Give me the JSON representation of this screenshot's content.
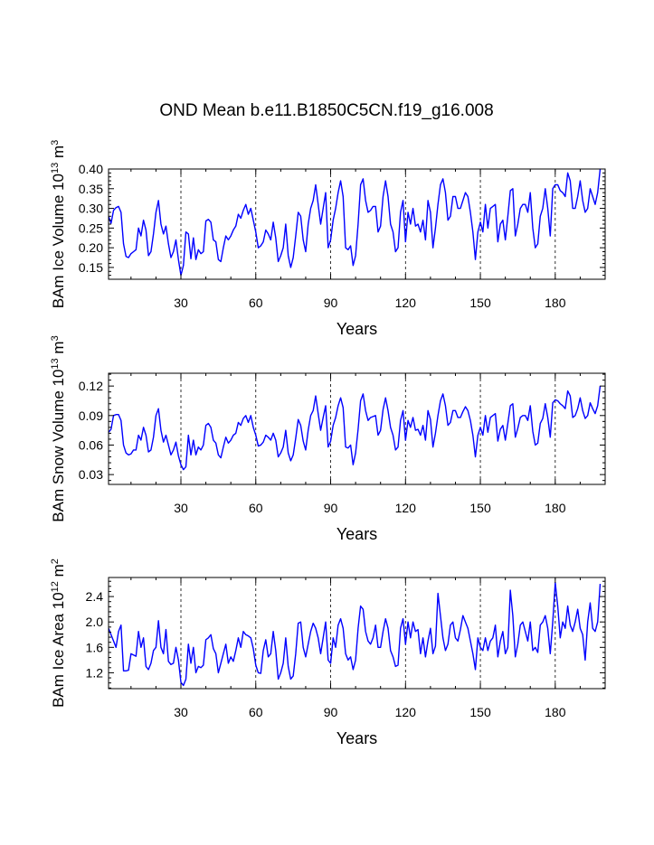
{
  "page_title": "OND Mean b.e11.B1850C5CN.f19_g16.008",
  "colors": {
    "line": "#0000ff",
    "frame": "#000000",
    "ref_line": "#000000"
  },
  "chart_data": [
    {
      "type": "line",
      "name": "ice-volume",
      "ylabel": {
        "pre": "BAm Ice Volume 10",
        "exp": "13",
        "mid": " m",
        "exp2": "3"
      },
      "xlabel": "Years",
      "xlim": [
        1,
        200
      ],
      "ylim": [
        0.12,
        0.4
      ],
      "xticks": [
        30,
        60,
        90,
        120,
        150,
        180
      ],
      "xtick_labels": [
        "30",
        "60",
        "90",
        "120",
        "150",
        "180"
      ],
      "yticks": [
        0.15,
        0.2,
        0.25,
        0.3,
        0.35,
        0.4
      ],
      "ytick_labels": [
        "0.15",
        "0.20",
        "0.25",
        "0.30",
        "0.35",
        "0.40"
      ],
      "ref_lines_x": [
        30,
        60,
        90,
        120,
        150,
        180
      ],
      "y": [
        0.28,
        0.262,
        0.295,
        0.302,
        0.305,
        0.29,
        0.21,
        0.178,
        0.175,
        0.185,
        0.19,
        0.195,
        0.25,
        0.23,
        0.27,
        0.245,
        0.18,
        0.19,
        0.235,
        0.29,
        0.32,
        0.26,
        0.235,
        0.255,
        0.21,
        0.175,
        0.19,
        0.22,
        0.17,
        0.13,
        0.155,
        0.24,
        0.235,
        0.172,
        0.225,
        0.17,
        0.195,
        0.185,
        0.19,
        0.268,
        0.272,
        0.265,
        0.22,
        0.215,
        0.17,
        0.165,
        0.2,
        0.23,
        0.22,
        0.23,
        0.245,
        0.255,
        0.285,
        0.275,
        0.295,
        0.31,
        0.285,
        0.3,
        0.27,
        0.24,
        0.2,
        0.205,
        0.215,
        0.245,
        0.235,
        0.22,
        0.265,
        0.225,
        0.165,
        0.18,
        0.2,
        0.26,
        0.18,
        0.15,
        0.175,
        0.23,
        0.29,
        0.28,
        0.22,
        0.19,
        0.26,
        0.3,
        0.32,
        0.36,
        0.31,
        0.26,
        0.3,
        0.34,
        0.2,
        0.22,
        0.27,
        0.3,
        0.34,
        0.37,
        0.33,
        0.2,
        0.195,
        0.205,
        0.155,
        0.18,
        0.26,
        0.36,
        0.375,
        0.32,
        0.29,
        0.295,
        0.305,
        0.305,
        0.24,
        0.255,
        0.33,
        0.37,
        0.33,
        0.26,
        0.24,
        0.19,
        0.2,
        0.29,
        0.32,
        0.215,
        0.29,
        0.26,
        0.3,
        0.255,
        0.26,
        0.24,
        0.27,
        0.22,
        0.32,
        0.29,
        0.2,
        0.25,
        0.31,
        0.36,
        0.375,
        0.34,
        0.27,
        0.28,
        0.33,
        0.33,
        0.3,
        0.3,
        0.32,
        0.34,
        0.33,
        0.29,
        0.24,
        0.17,
        0.24,
        0.265,
        0.24,
        0.31,
        0.25,
        0.3,
        0.305,
        0.31,
        0.215,
        0.26,
        0.27,
        0.22,
        0.28,
        0.345,
        0.35,
        0.23,
        0.26,
        0.3,
        0.31,
        0.31,
        0.29,
        0.34,
        0.25,
        0.2,
        0.21,
        0.28,
        0.3,
        0.35,
        0.3,
        0.23,
        0.35,
        0.36,
        0.36,
        0.345,
        0.34,
        0.33,
        0.39,
        0.37,
        0.3,
        0.3,
        0.33,
        0.37,
        0.32,
        0.29,
        0.3,
        0.35,
        0.33,
        0.31,
        0.34,
        0.4
      ]
    },
    {
      "type": "line",
      "name": "snow-volume",
      "ylabel": {
        "pre": "BAm Snow Volume 10",
        "exp": "13",
        "mid": " m",
        "exp2": "3"
      },
      "xlabel": "Years",
      "xlim": [
        1,
        200
      ],
      "ylim": [
        0.02,
        0.133
      ],
      "xticks": [
        30,
        60,
        90,
        120,
        150,
        180
      ],
      "xtick_labels": [
        "30",
        "60",
        "90",
        "120",
        "150",
        "180"
      ],
      "yticks": [
        0.03,
        0.06,
        0.09,
        0.12
      ],
      "ytick_labels": [
        "0.03",
        "0.06",
        "0.09",
        "0.12"
      ],
      "ref_lines_x": [
        30,
        60,
        90,
        120,
        150,
        180
      ],
      "y": [
        0.073,
        0.076,
        0.09,
        0.091,
        0.091,
        0.085,
        0.06,
        0.052,
        0.05,
        0.051,
        0.055,
        0.055,
        0.07,
        0.065,
        0.078,
        0.07,
        0.053,
        0.055,
        0.068,
        0.09,
        0.097,
        0.075,
        0.063,
        0.07,
        0.06,
        0.05,
        0.055,
        0.063,
        0.049,
        0.04,
        0.035,
        0.038,
        0.07,
        0.05,
        0.065,
        0.05,
        0.058,
        0.055,
        0.06,
        0.08,
        0.082,
        0.078,
        0.065,
        0.062,
        0.05,
        0.047,
        0.058,
        0.068,
        0.062,
        0.065,
        0.07,
        0.072,
        0.083,
        0.08,
        0.087,
        0.09,
        0.083,
        0.09,
        0.078,
        0.07,
        0.059,
        0.06,
        0.063,
        0.07,
        0.068,
        0.065,
        0.072,
        0.065,
        0.048,
        0.052,
        0.058,
        0.075,
        0.052,
        0.044,
        0.05,
        0.067,
        0.086,
        0.08,
        0.064,
        0.055,
        0.075,
        0.09,
        0.095,
        0.11,
        0.092,
        0.075,
        0.088,
        0.1,
        0.058,
        0.064,
        0.08,
        0.088,
        0.1,
        0.108,
        0.098,
        0.058,
        0.057,
        0.06,
        0.04,
        0.052,
        0.076,
        0.105,
        0.112,
        0.095,
        0.085,
        0.088,
        0.089,
        0.09,
        0.07,
        0.075,
        0.096,
        0.108,
        0.095,
        0.078,
        0.07,
        0.055,
        0.058,
        0.085,
        0.095,
        0.065,
        0.085,
        0.078,
        0.088,
        0.075,
        0.076,
        0.07,
        0.08,
        0.065,
        0.095,
        0.086,
        0.058,
        0.072,
        0.09,
        0.105,
        0.112,
        0.1,
        0.08,
        0.083,
        0.095,
        0.095,
        0.088,
        0.088,
        0.094,
        0.099,
        0.095,
        0.085,
        0.07,
        0.048,
        0.07,
        0.078,
        0.07,
        0.09,
        0.073,
        0.088,
        0.09,
        0.092,
        0.064,
        0.076,
        0.08,
        0.065,
        0.082,
        0.1,
        0.102,
        0.068,
        0.077,
        0.088,
        0.09,
        0.09,
        0.085,
        0.1,
        0.074,
        0.06,
        0.062,
        0.082,
        0.087,
        0.102,
        0.088,
        0.068,
        0.103,
        0.106,
        0.105,
        0.102,
        0.1,
        0.097,
        0.115,
        0.11,
        0.088,
        0.09,
        0.097,
        0.108,
        0.095,
        0.087,
        0.09,
        0.103,
        0.097,
        0.092,
        0.1,
        0.12
      ]
    },
    {
      "type": "line",
      "name": "ice-area",
      "ylabel": {
        "pre": "BAm Ice Area 10",
        "exp": "12",
        "mid": " m",
        "exp2": "2"
      },
      "xlabel": "Years",
      "xlim": [
        1,
        200
      ],
      "ylim": [
        0.95,
        2.7
      ],
      "xticks": [
        30,
        60,
        90,
        120,
        150,
        180
      ],
      "xtick_labels": [
        "30",
        "60",
        "90",
        "120",
        "150",
        "180"
      ],
      "yticks": [
        1.2,
        1.6,
        2.0,
        2.4
      ],
      "ytick_labels": [
        "1.2",
        "1.6",
        "2.0",
        "2.4"
      ],
      "ref_lines_x": [
        30,
        60,
        90,
        120,
        150,
        180
      ],
      "y": [
        1.9,
        1.8,
        1.7,
        1.6,
        1.85,
        1.95,
        1.23,
        1.23,
        1.24,
        1.5,
        1.48,
        1.46,
        1.85,
        1.6,
        1.75,
        1.3,
        1.25,
        1.35,
        1.55,
        1.6,
        2.02,
        1.6,
        1.5,
        1.88,
        1.38,
        1.33,
        1.35,
        1.6,
        1.4,
        1.05,
        1.0,
        1.1,
        1.65,
        1.35,
        1.6,
        1.2,
        1.3,
        1.28,
        1.32,
        1.72,
        1.75,
        1.8,
        1.58,
        1.5,
        1.2,
        1.35,
        1.5,
        1.65,
        1.35,
        1.45,
        1.38,
        1.55,
        1.75,
        1.6,
        1.85,
        1.8,
        1.78,
        1.75,
        1.58,
        1.32,
        1.2,
        1.19,
        1.55,
        1.72,
        1.45,
        1.5,
        1.85,
        1.55,
        1.1,
        1.2,
        1.35,
        1.75,
        1.3,
        1.1,
        1.15,
        1.5,
        1.98,
        2.0,
        1.6,
        1.45,
        1.65,
        1.85,
        1.98,
        1.9,
        1.75,
        1.5,
        1.75,
        2.0,
        1.4,
        1.35,
        1.75,
        1.6,
        1.95,
        2.05,
        1.9,
        1.5,
        1.4,
        1.45,
        1.25,
        1.4,
        1.9,
        2.25,
        2.2,
        1.85,
        1.7,
        1.65,
        1.75,
        1.95,
        1.6,
        1.6,
        1.85,
        2.05,
        1.9,
        1.55,
        1.45,
        1.3,
        1.32,
        1.9,
        2.05,
        1.65,
        2.0,
        1.75,
        2.0,
        1.85,
        1.88,
        1.5,
        1.75,
        1.45,
        1.7,
        1.9,
        1.5,
        1.62,
        2.45,
        2.1,
        1.75,
        1.55,
        1.65,
        1.95,
        2.0,
        1.75,
        1.7,
        1.88,
        2.1,
        2.0,
        1.9,
        1.7,
        1.5,
        1.25,
        1.75,
        1.6,
        1.55,
        1.75,
        1.55,
        1.7,
        1.75,
        1.95,
        1.45,
        1.7,
        1.85,
        1.5,
        1.6,
        2.5,
        2.1,
        1.45,
        1.65,
        1.95,
        2.0,
        1.85,
        1.7,
        2.0,
        1.55,
        1.6,
        1.52,
        1.95,
        2.0,
        2.1,
        1.9,
        1.5,
        2.0,
        2.62,
        2.25,
        1.75,
        2.0,
        1.9,
        2.25,
        1.95,
        1.85,
        2.0,
        2.2,
        1.9,
        1.8,
        1.4,
        2.0,
        2.3,
        1.9,
        1.85,
        2.0,
        2.6
      ]
    }
  ]
}
